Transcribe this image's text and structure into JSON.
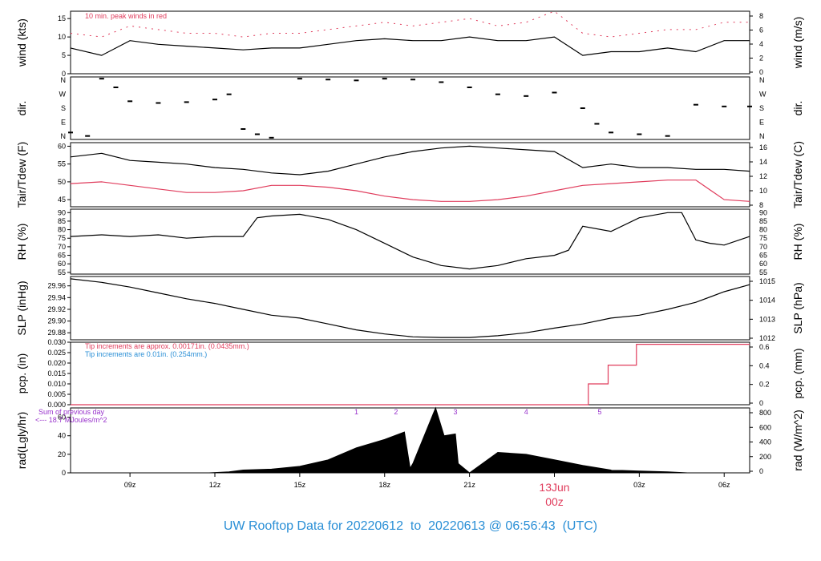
{
  "title": "UW Rooftop Data for 20220612  to  20220613 @ 06:56:43  (UTC)",
  "date_marker": {
    "date": "13Jun",
    "time": "00z",
    "color": "#e03c5c"
  },
  "x_axis": {
    "tick_labels": [
      "09z",
      "12z",
      "15z",
      "18z",
      "21z",
      "00z",
      "03z",
      "06z"
    ],
    "range_hours": [
      6.9,
      30.9
    ]
  },
  "colors": {
    "primary": "#000000",
    "red": "#e03c5c",
    "blue": "#2a8fd6",
    "purple": "#9933cc"
  },
  "chart_data": [
    {
      "type": "line",
      "id": "wind",
      "ylabel": "wind (kts)",
      "ylabel_right": "wind (m/s)",
      "ylim": [
        0,
        17
      ],
      "yticks": [
        0,
        5,
        10,
        15
      ],
      "yticks_right": [
        0,
        2,
        4,
        6,
        8
      ],
      "annotation": "10 min. peak winds in red",
      "series": [
        {
          "x": [
            6.9,
            8,
            9,
            10,
            11,
            12,
            13,
            14,
            15,
            16,
            17,
            18,
            19,
            20,
            21,
            22,
            23,
            24,
            25,
            26,
            27,
            28,
            29,
            30,
            30.9
          ],
          "values": [
            7,
            5,
            9,
            8,
            7.5,
            7,
            6.5,
            7,
            7,
            8,
            9,
            9.5,
            9,
            9,
            10,
            9,
            9,
            10,
            5,
            6,
            6,
            7,
            6,
            9,
            9
          ],
          "color": "#000000"
        },
        {
          "x": [
            6.9,
            8,
            9,
            10,
            11,
            12,
            13,
            14,
            15,
            16,
            17,
            18,
            19,
            20,
            21,
            22,
            23,
            24,
            25,
            26,
            27,
            28,
            29,
            30,
            30.9
          ],
          "values": [
            11,
            10,
            13,
            12,
            11,
            11,
            10,
            11,
            11,
            12,
            13,
            14,
            13,
            14,
            15,
            13,
            14,
            17,
            11,
            10,
            11,
            12,
            12,
            14,
            14
          ],
          "color": "#e03c5c"
        }
      ]
    },
    {
      "type": "scatter",
      "id": "dir",
      "ylabel": "dir.",
      "ylabel_right": "dir.",
      "ylim": [
        0,
        360
      ],
      "ytick_labels": [
        "N",
        "E",
        "S",
        "W",
        "N"
      ],
      "series": [
        {
          "x": [
            6.9,
            7.5,
            8,
            8.5,
            9,
            10,
            11,
            12,
            12.5,
            13,
            13.5,
            14,
            15,
            16,
            17,
            18,
            19,
            20,
            21,
            22,
            23,
            24,
            25,
            25.5,
            26,
            27,
            28,
            29,
            30,
            30.9
          ],
          "values": [
            40,
            20,
            350,
            300,
            220,
            210,
            215,
            230,
            260,
            60,
            30,
            10,
            350,
            345,
            340,
            350,
            345,
            330,
            300,
            260,
            250,
            270,
            180,
            90,
            40,
            30,
            20,
            200,
            190,
            190
          ],
          "color": "#000000"
        }
      ]
    },
    {
      "type": "line",
      "id": "temp",
      "ylabel": "Tair/Tdew (F)",
      "ylabel_right": "Tair/Tdew (C)",
      "ylim": [
        43,
        61
      ],
      "yticks": [
        45,
        50,
        55,
        60
      ],
      "yticks_right": [
        8,
        10,
        12,
        14,
        16
      ],
      "series": [
        {
          "name": "Tair",
          "x": [
            6.9,
            8,
            9,
            10,
            11,
            12,
            13,
            14,
            15,
            16,
            17,
            18,
            19,
            20,
            21,
            22,
            23,
            24,
            25,
            26,
            27,
            28,
            29,
            30,
            30.9
          ],
          "values": [
            57,
            58,
            56,
            55.5,
            55,
            54,
            53.5,
            52.5,
            52,
            53,
            55,
            57,
            58.5,
            59.5,
            60,
            59.5,
            59,
            58.5,
            54,
            55,
            54,
            54,
            53.5,
            53.5,
            53
          ],
          "color": "#000000"
        },
        {
          "name": "Tdew",
          "x": [
            6.9,
            8,
            9,
            10,
            11,
            12,
            13,
            14,
            15,
            16,
            17,
            18,
            19,
            20,
            21,
            22,
            23,
            24,
            25,
            26,
            27,
            28,
            29,
            30,
            30.9
          ],
          "values": [
            49.5,
            50,
            49,
            48,
            47,
            47,
            47.5,
            49,
            49,
            48.5,
            47.5,
            46,
            45,
            44.5,
            44.5,
            45,
            46,
            47.5,
            49,
            49.5,
            50,
            50.5,
            50.5,
            45,
            44.5
          ],
          "color": "#e03c5c"
        }
      ]
    },
    {
      "type": "line",
      "id": "rh",
      "ylabel": "RH (%)",
      "ylabel_right": "RH (%)",
      "ylim": [
        54,
        92
      ],
      "yticks": [
        55,
        60,
        65,
        70,
        75,
        80,
        85,
        90
      ],
      "series": [
        {
          "x": [
            6.9,
            8,
            9,
            10,
            11,
            12,
            13,
            13.5,
            14,
            15,
            16,
            17,
            18,
            19,
            20,
            21,
            22,
            23,
            24,
            24.5,
            25,
            26,
            27,
            28,
            28.5,
            29,
            29.5,
            30,
            30.9
          ],
          "values": [
            76,
            77,
            76,
            77,
            75,
            76,
            76,
            87,
            88,
            89,
            86,
            80,
            72,
            64,
            59,
            57,
            59,
            63,
            65,
            68,
            82,
            79,
            87,
            90,
            90,
            74,
            72,
            71,
            76
          ],
          "color": "#000000"
        }
      ]
    },
    {
      "type": "line",
      "id": "slp",
      "ylabel": "SLP (inHg)",
      "ylabel_right": "SLP (hPa)",
      "ylim": [
        29.868,
        29.976
      ],
      "yticks": [
        29.88,
        29.9,
        29.92,
        29.94,
        29.96
      ],
      "ytick_labels": [
        "29.88",
        "29.90",
        "29.92",
        "29.94",
        "29.96"
      ],
      "yticks_right_labels": [
        "1012",
        "1013",
        "1014",
        "1015"
      ],
      "series": [
        {
          "x": [
            6.9,
            8,
            9,
            10,
            11,
            12,
            13,
            14,
            15,
            16,
            17,
            18,
            19,
            20,
            21,
            22,
            23,
            24,
            25,
            26,
            27,
            28,
            29,
            30,
            30.9
          ],
          "values": [
            29.972,
            29.966,
            29.958,
            29.948,
            29.938,
            29.93,
            29.92,
            29.91,
            29.905,
            29.895,
            29.885,
            29.878,
            29.873,
            29.872,
            29.872,
            29.875,
            29.88,
            29.888,
            29.895,
            29.905,
            29.91,
            29.92,
            29.932,
            29.95,
            29.962
          ],
          "color": "#000000"
        }
      ]
    },
    {
      "type": "line",
      "id": "pcp",
      "ylabel": "pcp. (in)",
      "ylabel_right": "pcp. (mm)",
      "ylim": [
        0,
        0.03
      ],
      "yticks": [
        0,
        0.005,
        0.01,
        0.015,
        0.02,
        0.025,
        0.03
      ],
      "ytick_labels": [
        "0.000",
        "0.005",
        "0.010",
        "0.015",
        "0.020",
        "0.025",
        "0.030"
      ],
      "yticks_right_labels": [
        "0",
        "0.2",
        "0.4",
        "0.6"
      ],
      "annotations": [
        {
          "text": "Tip increments are approx. 0.00171in. (0.0435mm.)",
          "color": "#e03c5c"
        },
        {
          "text": "Tip increments are 0.01in. (0.254mm.)",
          "color": "#2a8fd6"
        }
      ],
      "series": [
        {
          "x": [
            6.9,
            25.2,
            25.2,
            25.9,
            25.9,
            26.9,
            26.9,
            30.9
          ],
          "values": [
            0,
            0,
            0.01,
            0.01,
            0.019,
            0.019,
            0.029,
            0.029
          ],
          "color": "#e03c5c"
        }
      ]
    },
    {
      "type": "area",
      "id": "rad",
      "ylabel": "rad(Lgly/hr)",
      "ylabel_right": "rad (W/m^2)",
      "ylim": [
        0,
        70
      ],
      "yticks": [
        0,
        20,
        40,
        60
      ],
      "yticks_right_labels": [
        "0",
        "200",
        "400",
        "600",
        "800"
      ],
      "annotations": [
        {
          "text": "Sum of previous day",
          "color": "#9933cc"
        },
        {
          "text": "<--- 18.7 MJoules/m^2",
          "color": "#9933cc"
        }
      ],
      "markers": [
        "1",
        "2",
        "3",
        "4",
        "5"
      ],
      "series": [
        {
          "x": [
            11.8,
            12.5,
            13,
            14,
            15,
            16,
            17,
            18,
            18.7,
            18.9,
            19.0,
            19.8,
            20.1,
            20.5,
            20.6,
            21,
            22,
            23,
            24,
            25,
            26,
            27,
            28,
            28.7
          ],
          "values": [
            0,
            1,
            3,
            4,
            7,
            14,
            27,
            36,
            44,
            5,
            10,
            70,
            40,
            42,
            10,
            0,
            22,
            20,
            14,
            8,
            3,
            2,
            1,
            0
          ],
          "color": "#000000"
        }
      ]
    }
  ]
}
